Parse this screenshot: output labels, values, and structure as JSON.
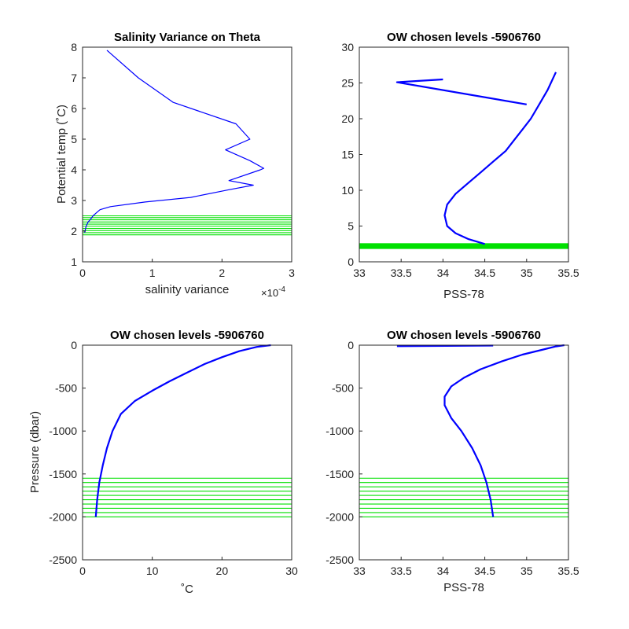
{
  "chart_data": [
    {
      "type": "line",
      "title": "Salinity Variance on Theta",
      "xlabel": "salinity variance",
      "ylabel": "Potential temp (˚C)",
      "x_exponent": "×10",
      "x_exponent_power": "-4",
      "xlim": [
        0,
        3
      ],
      "ylim": [
        1,
        8
      ],
      "xticks": [
        0,
        1,
        2,
        3
      ],
      "yticks": [
        1,
        2,
        3,
        4,
        5,
        6,
        7,
        8
      ],
      "xtick_labels": [
        "0",
        "1",
        "2",
        "3"
      ],
      "ytick_labels": [
        "1",
        "2",
        "3",
        "4",
        "5",
        "6",
        "7",
        "8"
      ],
      "series": [
        {
          "color": "#0000ff",
          "x": [
            0.35,
            0.8,
            1.3,
            2.2,
            2.4,
            2.05,
            2.4,
            2.6,
            2.55,
            2.1,
            2.45,
            2.1,
            1.55,
            0.9,
            0.4,
            0.25,
            0.2,
            0.15,
            0.12,
            0.08,
            0.05,
            0.03
          ],
          "y": [
            7.9,
            7.0,
            6.2,
            5.5,
            5.0,
            4.65,
            4.3,
            4.05,
            4.0,
            3.65,
            3.5,
            3.35,
            3.1,
            2.95,
            2.8,
            2.7,
            2.6,
            2.5,
            2.4,
            2.3,
            2.15,
            1.95
          ]
        }
      ],
      "hlines": {
        "color": "#00e000",
        "y": [
          1.88,
          1.95,
          2.02,
          2.09,
          2.16,
          2.23,
          2.3,
          2.37,
          2.44,
          2.5
        ]
      }
    },
    {
      "type": "line",
      "title": "OW chosen levels -5906760",
      "xlabel": "PSS-78",
      "ylabel": "",
      "xlim": [
        33,
        35.5
      ],
      "ylim": [
        0,
        30
      ],
      "xticks": [
        33,
        33.5,
        34,
        34.5,
        35,
        35.5
      ],
      "yticks": [
        0,
        5,
        10,
        15,
        20,
        25,
        30
      ],
      "xtick_labels": [
        "33",
        "33.5",
        "34",
        "34.5",
        "35",
        "35.5"
      ],
      "ytick_labels": [
        "0",
        "5",
        "10",
        "15",
        "20",
        "25",
        "30"
      ],
      "series": [
        {
          "color": "#0000ff",
          "x": [
            34.5,
            34.3,
            34.15,
            34.05,
            34.02,
            34.05,
            34.15,
            34.3,
            34.45,
            34.6,
            34.75,
            34.85,
            34.95,
            35.05,
            35.15,
            35.25,
            35.35
          ],
          "y": [
            2.5,
            3.2,
            4.0,
            5.0,
            6.5,
            8.0,
            9.5,
            11.0,
            12.5,
            14.0,
            15.5,
            17.0,
            18.5,
            20.0,
            22.0,
            24.0,
            26.5
          ]
        },
        {
          "color": "#0000ff",
          "x": [
            34.0,
            33.45,
            35.0
          ],
          "y": [
            25.5,
            25.1,
            22.0
          ]
        }
      ],
      "hband": {
        "color": "#00e000",
        "y0": 1.8,
        "y1": 2.6
      }
    },
    {
      "type": "line",
      "title": "OW chosen levels -5906760",
      "xlabel": "˚C",
      "ylabel": "Pressure (dbar)",
      "xlim": [
        0,
        30
      ],
      "ylim": [
        -2500,
        0
      ],
      "xticks": [
        0,
        10,
        20,
        30
      ],
      "yticks": [
        -2500,
        -2000,
        -1500,
        -1000,
        -500,
        0
      ],
      "xtick_labels": [
        "0",
        "10",
        "20",
        "30"
      ],
      "ytick_labels": [
        "-2500",
        "-2000",
        "-1500",
        "-1000",
        "-500",
        "0"
      ],
      "series": [
        {
          "color": "#0000ff",
          "x": [
            1.9,
            2.1,
            2.4,
            2.9,
            3.5,
            4.3,
            5.5,
            7.5,
            10.0,
            12.5,
            15.0,
            17.5,
            20.0,
            22.5,
            25.0,
            27.0
          ],
          "y": [
            -2000,
            -1800,
            -1600,
            -1400,
            -1200,
            -1000,
            -800,
            -650,
            -530,
            -420,
            -320,
            -220,
            -140,
            -70,
            -20,
            0
          ]
        }
      ],
      "hlines": {
        "color": "#00e000",
        "y": [
          -1550,
          -1600,
          -1650,
          -1700,
          -1750,
          -1800,
          -1850,
          -1900,
          -1950,
          -2000
        ]
      }
    },
    {
      "type": "line",
      "title": "OW chosen levels -5906760",
      "xlabel": "PSS-78",
      "ylabel": "",
      "xlim": [
        33,
        35.5
      ],
      "ylim": [
        -2500,
        0
      ],
      "xticks": [
        33,
        33.5,
        34,
        34.5,
        35,
        35.5
      ],
      "yticks": [
        -2500,
        -2000,
        -1500,
        -1000,
        -500,
        0
      ],
      "xtick_labels": [
        "33",
        "33.5",
        "34",
        "34.5",
        "35",
        "35.5"
      ],
      "ytick_labels": [
        "-2500",
        "-2000",
        "-1500",
        "-1000",
        "-500",
        "0"
      ],
      "series": [
        {
          "color": "#0000ff",
          "x": [
            34.6,
            34.57,
            34.52,
            34.45,
            34.35,
            34.22,
            34.1,
            34.02,
            34.02,
            34.1,
            34.25,
            34.45,
            34.7,
            34.95,
            35.2,
            35.35,
            35.45
          ],
          "y": [
            -2000,
            -1800,
            -1600,
            -1400,
            -1200,
            -1000,
            -850,
            -700,
            -600,
            -480,
            -380,
            -280,
            -190,
            -110,
            -50,
            -15,
            0
          ]
        },
        {
          "color": "#0000ff",
          "x": [
            33.45,
            34.6
          ],
          "y": [
            -12,
            -5
          ]
        }
      ],
      "hlines": {
        "color": "#00e000",
        "y": [
          -1550,
          -1600,
          -1650,
          -1700,
          -1750,
          -1800,
          -1850,
          -1900,
          -1950,
          -2000
        ]
      }
    }
  ]
}
